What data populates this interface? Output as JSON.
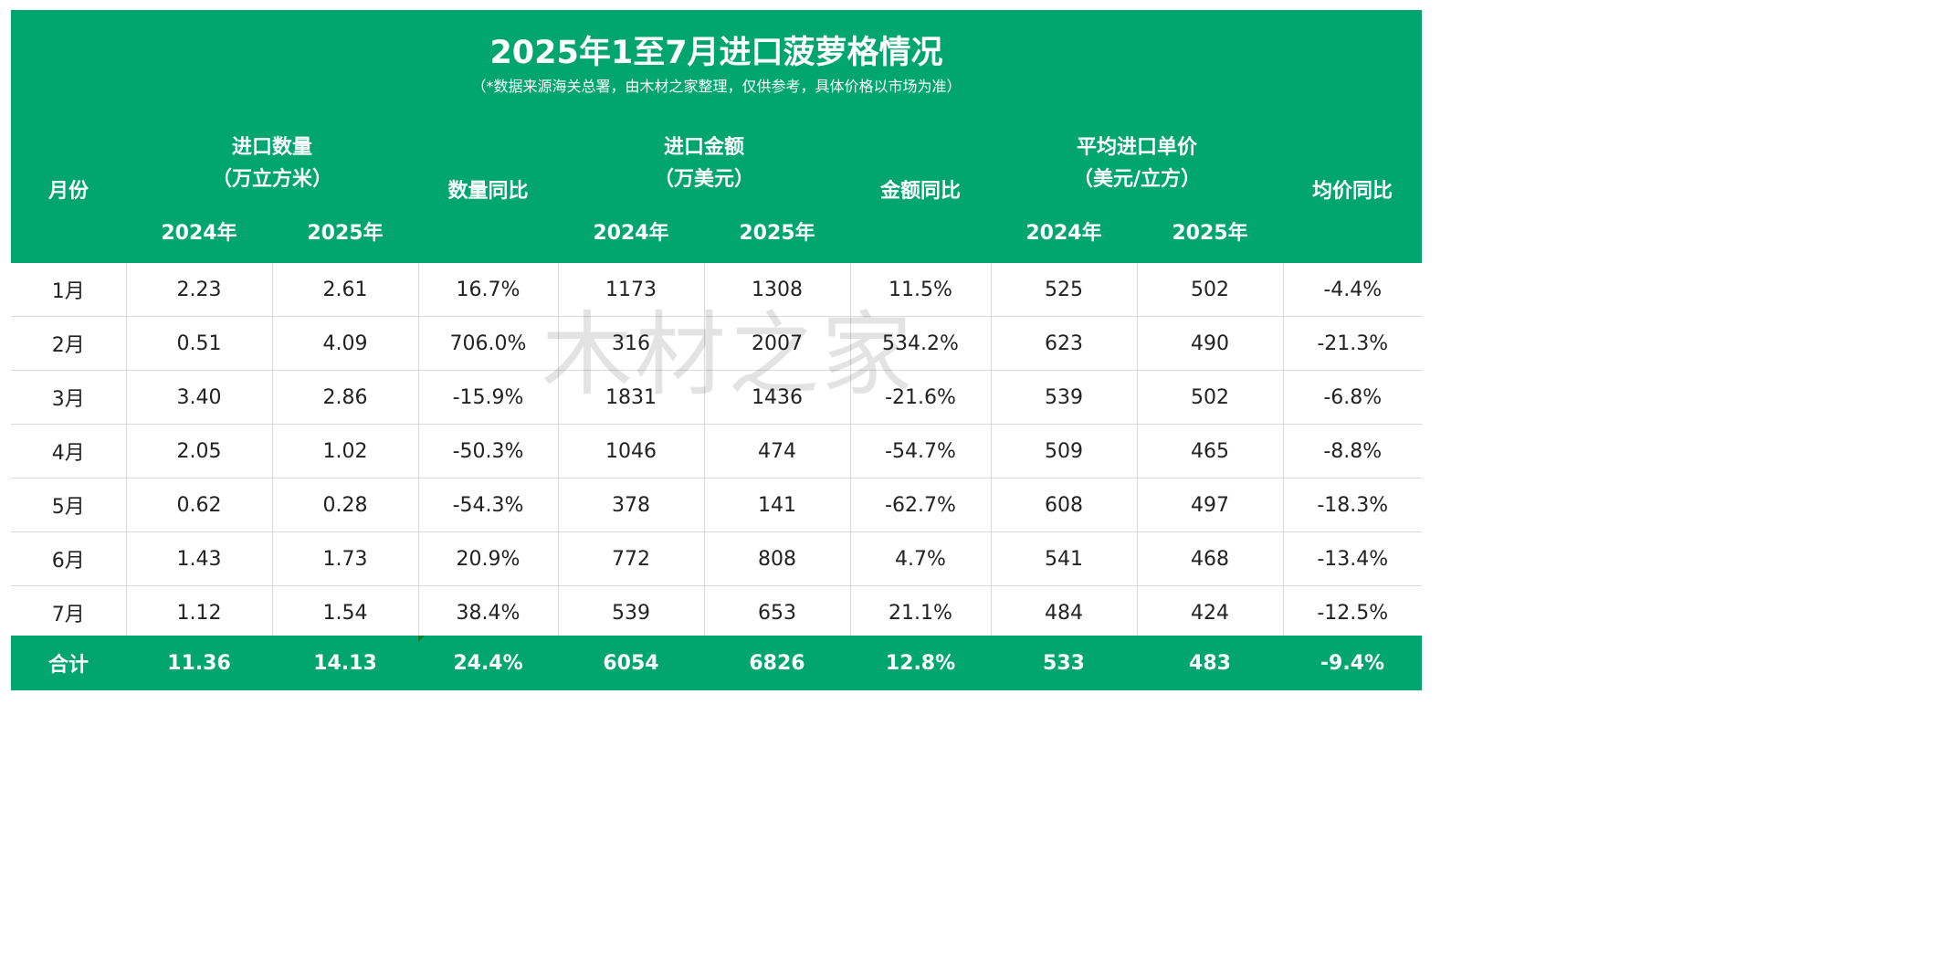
{
  "title": "2025年1至7月进口菠萝格情况",
  "subtitle": "（*数据来源海关总署，由木材之家整理，仅供参考，具体价格以市场为准）",
  "watermark": "木材之家",
  "header": {
    "month": "月份",
    "qty_group_line1": "进口数量",
    "qty_group_line2": "（万立方米）",
    "qty_yoy": "数量同比",
    "amt_group_line1": "进口金额",
    "amt_group_line2": "（万美元）",
    "amt_yoy": "金额同比",
    "price_group_line1": "平均进口单价",
    "price_group_line2": "（美元/立方）",
    "price_yoy": "均价同比",
    "year_2024": "2024年",
    "year_2025": "2025年"
  },
  "rows": [
    {
      "month": "1月",
      "qty2024": "2.23",
      "qty2025": "2.61",
      "qty_yoy": "16.7%",
      "amt2024": "1173",
      "amt2025": "1308",
      "amt_yoy": "11.5%",
      "price2024": "525",
      "price2025": "502",
      "price_yoy": "-4.4%"
    },
    {
      "month": "2月",
      "qty2024": "0.51",
      "qty2025": "4.09",
      "qty_yoy": "706.0%",
      "amt2024": "316",
      "amt2025": "2007",
      "amt_yoy": "534.2%",
      "price2024": "623",
      "price2025": "490",
      "price_yoy": "-21.3%"
    },
    {
      "month": "3月",
      "qty2024": "3.40",
      "qty2025": "2.86",
      "qty_yoy": "-15.9%",
      "amt2024": "1831",
      "amt2025": "1436",
      "amt_yoy": "-21.6%",
      "price2024": "539",
      "price2025": "502",
      "price_yoy": "-6.8%"
    },
    {
      "month": "4月",
      "qty2024": "2.05",
      "qty2025": "1.02",
      "qty_yoy": "-50.3%",
      "amt2024": "1046",
      "amt2025": "474",
      "amt_yoy": "-54.7%",
      "price2024": "509",
      "price2025": "465",
      "price_yoy": "-8.8%"
    },
    {
      "month": "5月",
      "qty2024": "0.62",
      "qty2025": "0.28",
      "qty_yoy": "-54.3%",
      "amt2024": "378",
      "amt2025": "141",
      "amt_yoy": "-62.7%",
      "price2024": "608",
      "price2025": "497",
      "price_yoy": "-18.3%"
    },
    {
      "month": "6月",
      "qty2024": "1.43",
      "qty2025": "1.73",
      "qty_yoy": "20.9%",
      "amt2024": "772",
      "amt2025": "808",
      "amt_yoy": "4.7%",
      "price2024": "541",
      "price2025": "468",
      "price_yoy": "-13.4%"
    },
    {
      "month": "7月",
      "qty2024": "1.12",
      "qty2025": "1.54",
      "qty_yoy": "38.4%",
      "amt2024": "539",
      "amt2025": "653",
      "amt_yoy": "21.1%",
      "price2024": "484",
      "price2025": "424",
      "price_yoy": "-12.5%"
    }
  ],
  "total": {
    "month": "合计",
    "qty2024": "11.36",
    "qty2025": "14.13",
    "qty_yoy": "24.4%",
    "amt2024": "6054",
    "amt2025": "6826",
    "amt_yoy": "12.8%",
    "price2024": "533",
    "price2025": "483",
    "price_yoy": "-9.4%"
  },
  "colors": {
    "header_green": "#00a66e",
    "positive_red": "#e8252a",
    "negative_green": "#169b62",
    "grid": "#d9d9d9"
  }
}
